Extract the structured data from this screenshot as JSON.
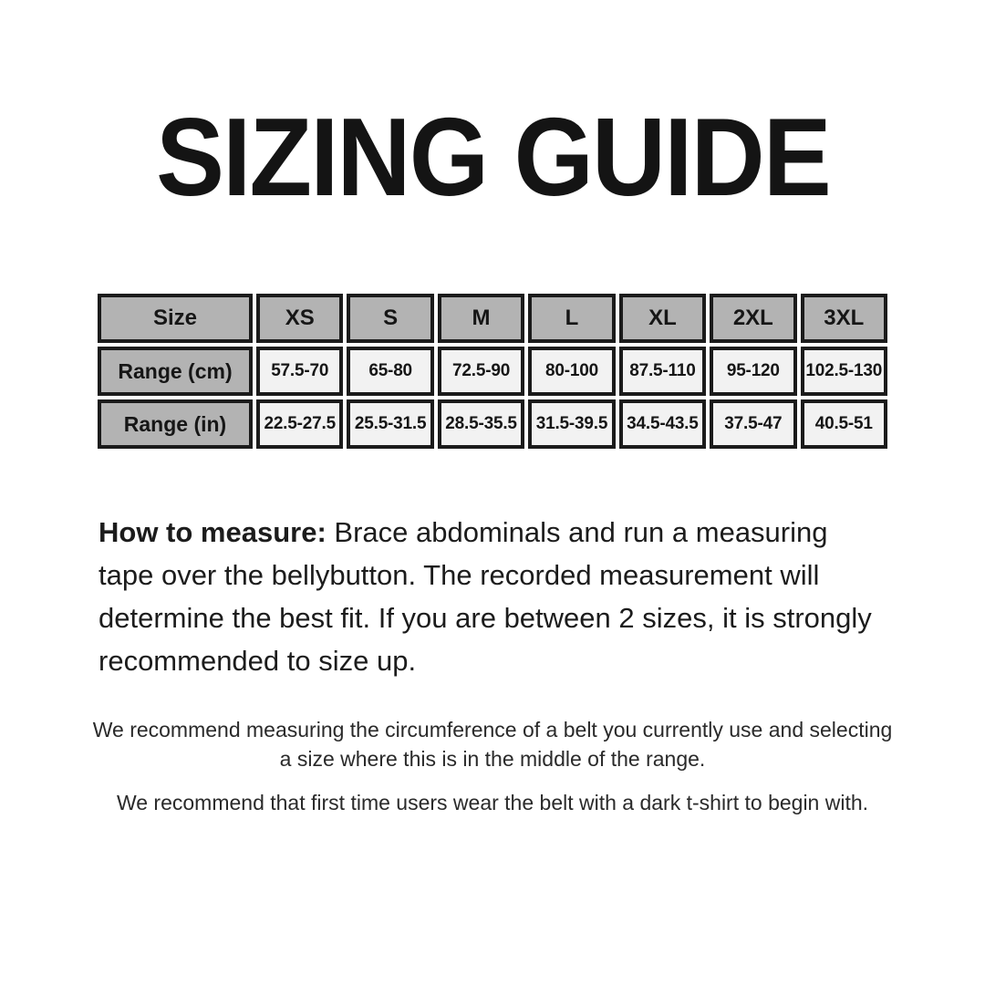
{
  "title": "SIZING GUIDE",
  "size_table": {
    "columns": [
      "Size",
      "XS",
      "S",
      "M",
      "L",
      "XL",
      "2XL",
      "3XL"
    ],
    "rows": [
      {
        "label": "Range (cm)",
        "values": [
          "57.5-70",
          "65-80",
          "72.5-90",
          "80-100",
          "87.5-110",
          "95-120",
          "102.5-130"
        ]
      },
      {
        "label": "Range (in)",
        "values": [
          "22.5-27.5",
          "25.5-31.5",
          "28.5-35.5",
          "31.5-39.5",
          "34.5-43.5",
          "37.5-47",
          "40.5-51"
        ]
      }
    ],
    "colors": {
      "header_bg": "#b3b3b3",
      "cell_bg": "#f2f2f2",
      "border": "#1b1b1b"
    }
  },
  "how_to_measure": {
    "label": "How to measure:",
    "text": " Brace abdominals and run a measuring tape over the bellybutton. The recorded measurement will determine the best fit. If you are between 2 sizes, it is strongly recommended to size up."
  },
  "notes": [
    "We recommend measuring the circumference of a belt you currently use and selecting a size where this is in the middle of the range.",
    "We recommend that first time users wear the belt with a dark t-shirt to begin with."
  ]
}
